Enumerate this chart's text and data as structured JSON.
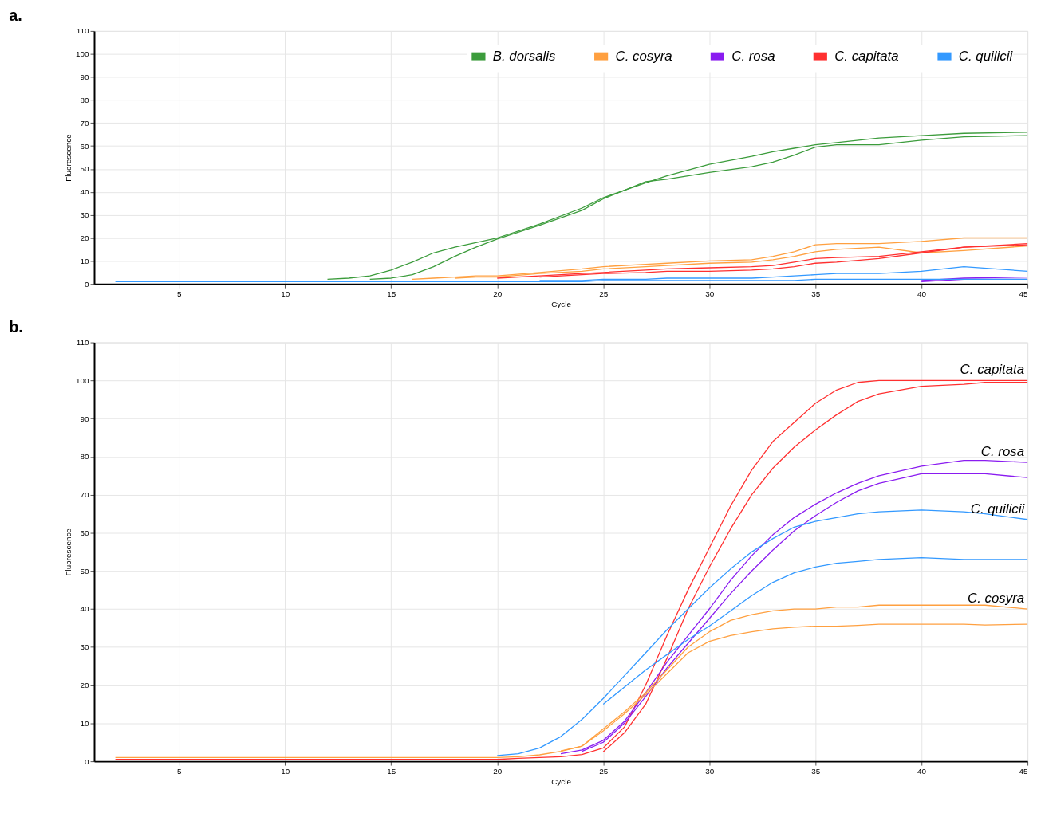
{
  "chart_data": [
    {
      "type": "line",
      "title": "a.",
      "xlabel": "Cycle",
      "ylabel": "Fluorescence",
      "xlim": [
        1,
        45
      ],
      "xticks": [
        5,
        10,
        15,
        20,
        25,
        30,
        35,
        40,
        45
      ],
      "ylim": [
        0,
        110
      ],
      "yticks": [
        0,
        10,
        20,
        30,
        40,
        50,
        60,
        70,
        80,
        90,
        100,
        110
      ],
      "grid": true,
      "legend": "top right",
      "x": [
        2,
        5,
        10,
        12,
        13,
        14,
        15,
        16,
        17,
        18,
        19,
        20,
        22,
        24,
        25,
        27,
        28,
        30,
        32,
        33,
        34,
        35,
        36,
        38,
        40,
        42,
        45
      ],
      "series": [
        {
          "name": "B. dorsalis",
          "color": "#3c9c3c",
          "values": [
            null,
            null,
            null,
            2,
            2.5,
            3.5,
            6,
            9.5,
            13.5,
            16,
            18,
            20,
            26,
            33,
            37.5,
            44,
            47,
            52,
            55.5,
            57.5,
            59,
            60.5,
            61.5,
            63.5,
            64.5,
            65.5,
            66
          ]
        },
        {
          "color": "#3c9c3c",
          "values": [
            null,
            null,
            null,
            null,
            null,
            2,
            2.5,
            4,
            7.5,
            12,
            16,
            19.5,
            25.5,
            32,
            37,
            44.5,
            45.5,
            48.5,
            51,
            53,
            56,
            59.5,
            60.5,
            60.5,
            62.5,
            64,
            64.5
          ]
        },
        {
          "name": "C. cosyra",
          "color": "#ffa040",
          "values": [
            null,
            null,
            null,
            null,
            null,
            null,
            null,
            2,
            2.5,
            3,
            3.5,
            3.5,
            5,
            6.5,
            7.5,
            8.5,
            9,
            10,
            10.5,
            12,
            14,
            17,
            17.5,
            17.5,
            18.5,
            20,
            20
          ]
        },
        {
          "color": "#ffa040",
          "values": [
            null,
            null,
            null,
            null,
            null,
            null,
            null,
            null,
            null,
            2.5,
            3,
            3,
            4.5,
            5.5,
            6.5,
            7.5,
            8,
            9,
            9.5,
            10.5,
            12,
            14,
            15,
            16,
            13.5,
            14.5,
            16.5
          ]
        },
        {
          "name": "C. rosa",
          "color": "#8a1cf0",
          "values": [
            null,
            null,
            null,
            null,
            null,
            null,
            null,
            null,
            null,
            null,
            null,
            null,
            null,
            null,
            null,
            null,
            null,
            null,
            null,
            null,
            null,
            null,
            null,
            null,
            1.5,
            2.5,
            3
          ]
        },
        {
          "color": "#8a1cf0",
          "values": [
            null,
            null,
            null,
            null,
            null,
            null,
            null,
            null,
            null,
            null,
            null,
            null,
            null,
            null,
            null,
            null,
            null,
            null,
            null,
            null,
            null,
            null,
            null,
            null,
            1,
            2,
            2
          ]
        },
        {
          "name": "C. capitata",
          "color": "#ff3030",
          "values": [
            null,
            null,
            null,
            null,
            null,
            null,
            null,
            null,
            null,
            null,
            null,
            2.5,
            3.5,
            4.5,
            5,
            6,
            6.5,
            7,
            7.5,
            8,
            9.5,
            11,
            11.5,
            12,
            14,
            16,
            17.5
          ]
        },
        {
          "color": "#ff3030",
          "values": [
            null,
            null,
            null,
            null,
            null,
            null,
            null,
            null,
            null,
            null,
            null,
            null,
            3,
            4,
            4.5,
            5,
            5.5,
            5.5,
            6,
            6.5,
            7.5,
            9,
            9.5,
            11,
            13.5,
            16,
            17
          ]
        },
        {
          "name": "C. quilicii",
          "color": "#3399ff",
          "values": [
            null,
            null,
            null,
            null,
            null,
            null,
            null,
            null,
            null,
            null,
            null,
            null,
            1.5,
            1.5,
            2,
            2,
            2.5,
            2.5,
            2.5,
            3,
            3.5,
            4,
            4.5,
            4.5,
            5.5,
            7.5,
            5.5
          ]
        },
        {
          "color": "#3399ff",
          "values": [
            1,
            1,
            1,
            1,
            1,
            1,
            1,
            1,
            1,
            1,
            1,
            1,
            1,
            1,
            1.5,
            1.5,
            1.5,
            1.5,
            1.5,
            1.5,
            1.5,
            2,
            2,
            2,
            2,
            2,
            2
          ]
        }
      ]
    },
    {
      "type": "line",
      "title": "b.",
      "xlabel": "Cycle",
      "ylabel": "Fluorescence",
      "xlim": [
        1,
        45
      ],
      "xticks": [
        5,
        10,
        15,
        20,
        25,
        30,
        35,
        40,
        45
      ],
      "ylim": [
        0,
        110
      ],
      "yticks": [
        0,
        10,
        20,
        30,
        40,
        50,
        60,
        70,
        80,
        90,
        100,
        110
      ],
      "grid": true,
      "x": [
        2,
        5,
        10,
        15,
        19,
        20,
        21,
        22,
        23,
        24,
        25,
        26,
        27,
        28,
        29,
        30,
        31,
        32,
        33,
        34,
        35,
        36,
        37,
        38,
        40,
        42,
        43,
        45
      ],
      "series": [
        {
          "name": "C. capitata",
          "color": "#ff3030",
          "values": [
            0.5,
            0.5,
            0.5,
            0.5,
            0.5,
            0.5,
            0.8,
            1,
            1.2,
            1.8,
            3.5,
            9,
            20,
            33,
            45,
            56,
            67,
            76.5,
            84,
            89,
            94,
            97.5,
            99.5,
            100,
            100,
            100,
            100,
            100
          ]
        },
        {
          "color": "#ff3030",
          "values": [
            null,
            null,
            null,
            null,
            null,
            null,
            null,
            null,
            null,
            null,
            2.5,
            7.5,
            15,
            27,
            40,
            51,
            61,
            70,
            77,
            82.5,
            87,
            91,
            94.5,
            96.5,
            98.5,
            99,
            99.5,
            99.5
          ]
        },
        {
          "name": "C. rosa",
          "color": "#8a1cf0",
          "values": [
            null,
            null,
            null,
            null,
            null,
            null,
            null,
            null,
            2,
            3,
            5.5,
            10.5,
            18,
            26,
            33,
            40,
            47.5,
            54,
            59.5,
            64,
            67.5,
            70.5,
            73,
            75,
            77.5,
            79,
            79,
            78.5
          ]
        },
        {
          "color": "#8a1cf0",
          "values": [
            null,
            null,
            null,
            null,
            null,
            null,
            null,
            null,
            null,
            2.6,
            5,
            10,
            17,
            24.5,
            31,
            37.5,
            44,
            50,
            55.5,
            60.5,
            64.5,
            68,
            71,
            73,
            75.5,
            75.5,
            75.5,
            74.5
          ]
        },
        {
          "name": "C. quilicii",
          "color": "#3399ff",
          "values": [
            null,
            null,
            null,
            null,
            null,
            1.5,
            2,
            3.5,
            6.5,
            11,
            16.5,
            22.5,
            28.5,
            34.5,
            40,
            45.5,
            50.5,
            55,
            58.5,
            61.5,
            63,
            64,
            65,
            65.5,
            66,
            65.5,
            65,
            63.5
          ]
        },
        {
          "color": "#3399ff",
          "values": [
            null,
            null,
            null,
            null,
            null,
            null,
            null,
            null,
            null,
            null,
            15,
            19.5,
            24,
            28,
            32,
            35.5,
            39.5,
            43.5,
            47,
            49.5,
            51,
            52,
            52.5,
            53,
            53.5,
            53,
            53,
            53
          ]
        },
        {
          "name": "C. cosyra",
          "color": "#ffa040",
          "values": [
            null,
            null,
            null,
            null,
            null,
            null,
            null,
            null,
            2.7,
            4,
            8.5,
            13,
            18,
            24,
            30,
            34,
            37,
            38.5,
            39.5,
            40,
            40,
            40.5,
            40.5,
            41,
            41,
            41,
            41,
            40
          ]
        },
        {
          "color": "#ffa040",
          "values": [
            1,
            1,
            1,
            1,
            1,
            1,
            1.2,
            1.7,
            2.6,
            4,
            8,
            12.5,
            17.5,
            23,
            28.5,
            31.5,
            33,
            34,
            34.8,
            35.2,
            35.5,
            35.5,
            35.7,
            36,
            36,
            36,
            35.8,
            36
          ]
        }
      ]
    }
  ]
}
